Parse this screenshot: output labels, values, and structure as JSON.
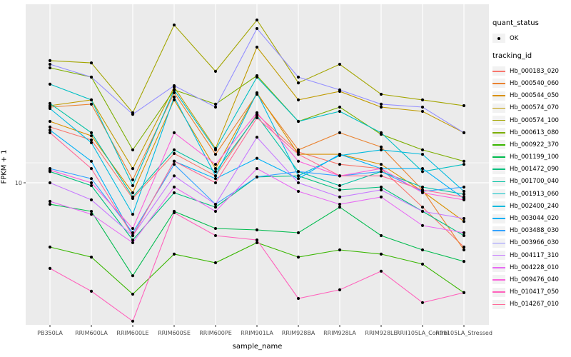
{
  "figure": {
    "bg": "#FFFFFF",
    "panel_bg": "#EBEBEB",
    "grid_color": "#FFFFFF",
    "tick_label_color": "#4D4D4D",
    "text_color": "#000000",
    "legend_key_bg": "#F2F2F2",
    "point_color": "#000000"
  },
  "axes": {
    "x_title": "sample_name",
    "y_title": "FPKM + 1",
    "y_tick_labels": [
      "10"
    ]
  },
  "legend": {
    "quant_status": {
      "title": "quant_status",
      "items": [
        {
          "label": "OK"
        }
      ]
    },
    "tracking_id": {
      "title": "tracking_id"
    }
  },
  "chart_data": {
    "type": "line",
    "title": "",
    "xlabel": "sample_name",
    "ylabel": "FPKM + 1",
    "y_scale": "log10",
    "y_axis_labels": [
      "10"
    ],
    "legend_position": "right",
    "grid": true,
    "point_marker": "black dot on every vertex (quant_status = OK)",
    "categories": [
      "PB350LA",
      "RRIM600LA",
      "RRIM600LE",
      "RRIM600SE",
      "RRIM600PE",
      "RRIM901LA",
      "RRIM928BA",
      "RRIM928LA",
      "RRIM928LE",
      "RRII105LA_Control",
      "RRII105LA_Stressed"
    ],
    "series": [
      {
        "tracking_id": "Hb_000183_020",
        "quant_status": "OK",
        "color": "#F8766D",
        "values": [
          24.8,
          20.1,
          7.74,
          16.1,
          11.2,
          30.5,
          16.5,
          13.5,
          12.6,
          6.73,
          3.51
        ]
      },
      {
        "tracking_id": "Hb_000540_060",
        "quant_status": "OK",
        "color": "#EA8331",
        "values": [
          34.3,
          36.0,
          10.5,
          43.3,
          15.9,
          42.3,
          17.1,
          22.6,
          17.9,
          8.9,
          3.35
        ]
      },
      {
        "tracking_id": "Hb_000544_050",
        "quant_status": "OK",
        "color": "#D89000",
        "values": [
          27.2,
          21.5,
          8.5,
          38.6,
          12.6,
          43.3,
          15.9,
          15.9,
          13.5,
          8.7,
          5.33
        ]
      },
      {
        "tracking_id": "Hb_000574_070",
        "quant_status": "OK",
        "color": "#C09B00",
        "values": [
          35.1,
          38.6,
          12.6,
          47.5,
          17.5,
          91.1,
          38.6,
          44.3,
          34.3,
          32.0,
          22.6
        ]
      },
      {
        "tracking_id": "Hb_000574_100",
        "quant_status": "OK",
        "color": "#A3A500",
        "values": [
          73.1,
          70.5,
          31.3,
          130.7,
          61.4,
          141.8,
          50.9,
          68.9,
          42.3,
          38.6,
          35.1
        ]
      },
      {
        "tracking_id": "Hb_000613_080",
        "quant_status": "OK",
        "color": "#7CAE00",
        "values": [
          65.0,
          55.9,
          17.1,
          45.4,
          36.0,
          57.2,
          27.2,
          34.3,
          22.0,
          17.1,
          14.2
        ]
      },
      {
        "tracking_id": "Hb_000922_370",
        "quant_status": "OK",
        "color": "#39B600",
        "values": [
          3.51,
          2.98,
          1.63,
          3.13,
          2.72,
          3.77,
          2.98,
          3.35,
          3.13,
          2.66,
          1.67
        ]
      },
      {
        "tracking_id": "Hb_001199_100",
        "quant_status": "OK",
        "color": "#00BB4E",
        "values": [
          7.05,
          6.28,
          2.2,
          6.28,
          4.75,
          4.64,
          4.43,
          6.73,
          4.23,
          3.35,
          2.78
        ]
      },
      {
        "tracking_id": "Hb_001472_090",
        "quant_status": "OK",
        "color": "#00BF7D",
        "values": [
          12.0,
          9.55,
          3.94,
          8.5,
          6.73,
          11.0,
          11.2,
          8.9,
          9.33,
          6.28,
          4.23
        ]
      },
      {
        "tracking_id": "Hb_001700_040",
        "quant_status": "OK",
        "color": "#00C1A3",
        "values": [
          36.4,
          22.6,
          7.93,
          17.1,
          12.0,
          29.8,
          12.0,
          9.55,
          12.0,
          9.33,
          8.3
        ]
      },
      {
        "tracking_id": "Hb_001913_060",
        "quant_status": "OK",
        "color": "#00BFC4",
        "values": [
          49.8,
          38.6,
          9.55,
          45.4,
          17.1,
          55.9,
          27.2,
          32.0,
          22.6,
          12.0,
          13.5
        ]
      },
      {
        "tracking_id": "Hb_002400_240",
        "quant_status": "OK",
        "color": "#00BADE",
        "values": [
          33.5,
          19.2,
          5.99,
          40.4,
          11.2,
          43.3,
          11.2,
          15.6,
          17.1,
          15.9,
          8.7
        ]
      },
      {
        "tracking_id": "Hb_003044_020",
        "quant_status": "OK",
        "color": "#00B0F6",
        "values": [
          23.6,
          14.2,
          4.23,
          14.2,
          10.7,
          14.9,
          10.7,
          15.9,
          12.6,
          12.6,
          7.74
        ]
      },
      {
        "tracking_id": "Hb_003488_030",
        "quant_status": "OK",
        "color": "#35A2FF",
        "values": [
          12.6,
          10.7,
          4.43,
          13.5,
          7.05,
          11.0,
          12.0,
          11.2,
          12.0,
          8.7,
          9.33
        ]
      },
      {
        "tracking_id": "Hb_003966_030",
        "quant_status": "OK",
        "color": "#9590FF",
        "values": [
          68.9,
          55.9,
          30.5,
          48.6,
          34.3,
          123.3,
          55.9,
          45.4,
          36.0,
          34.3,
          22.6
        ]
      },
      {
        "tracking_id": "Hb_004117_310",
        "quant_status": "OK",
        "color": "#C77CFF",
        "values": [
          10.0,
          7.57,
          4.23,
          11.2,
          7.05,
          21.0,
          10.0,
          7.93,
          8.9,
          6.28,
          5.59
        ]
      },
      {
        "tracking_id": "Hb_004228_010",
        "quant_status": "OK",
        "color": "#E76BF3",
        "values": [
          7.39,
          5.99,
          3.77,
          9.33,
          6.28,
          12.6,
          8.7,
          7.05,
          7.93,
          4.98,
          4.43
        ]
      },
      {
        "tracking_id": "Hb_009476_040",
        "quant_status": "OK",
        "color": "#FA62DB",
        "values": [
          12.3,
          10.0,
          4.75,
          22.6,
          13.5,
          31.3,
          14.2,
          11.2,
          12.6,
          8.5,
          7.57
        ]
      },
      {
        "tracking_id": "Hb_010417_050",
        "quant_status": "OK",
        "color": "#FF62BC",
        "values": [
          2.48,
          1.71,
          1.05,
          6.14,
          4.23,
          3.94,
          1.52,
          1.75,
          2.37,
          1.42,
          1.67
        ]
      },
      {
        "tracking_id": "Hb_014267_010",
        "quant_status": "OK",
        "color": "#FF6A98",
        "values": [
          22.6,
          12.6,
          4.23,
          14.2,
          10.0,
          28.8,
          15.9,
          11.2,
          11.2,
          8.9,
          7.93
        ]
      }
    ]
  }
}
